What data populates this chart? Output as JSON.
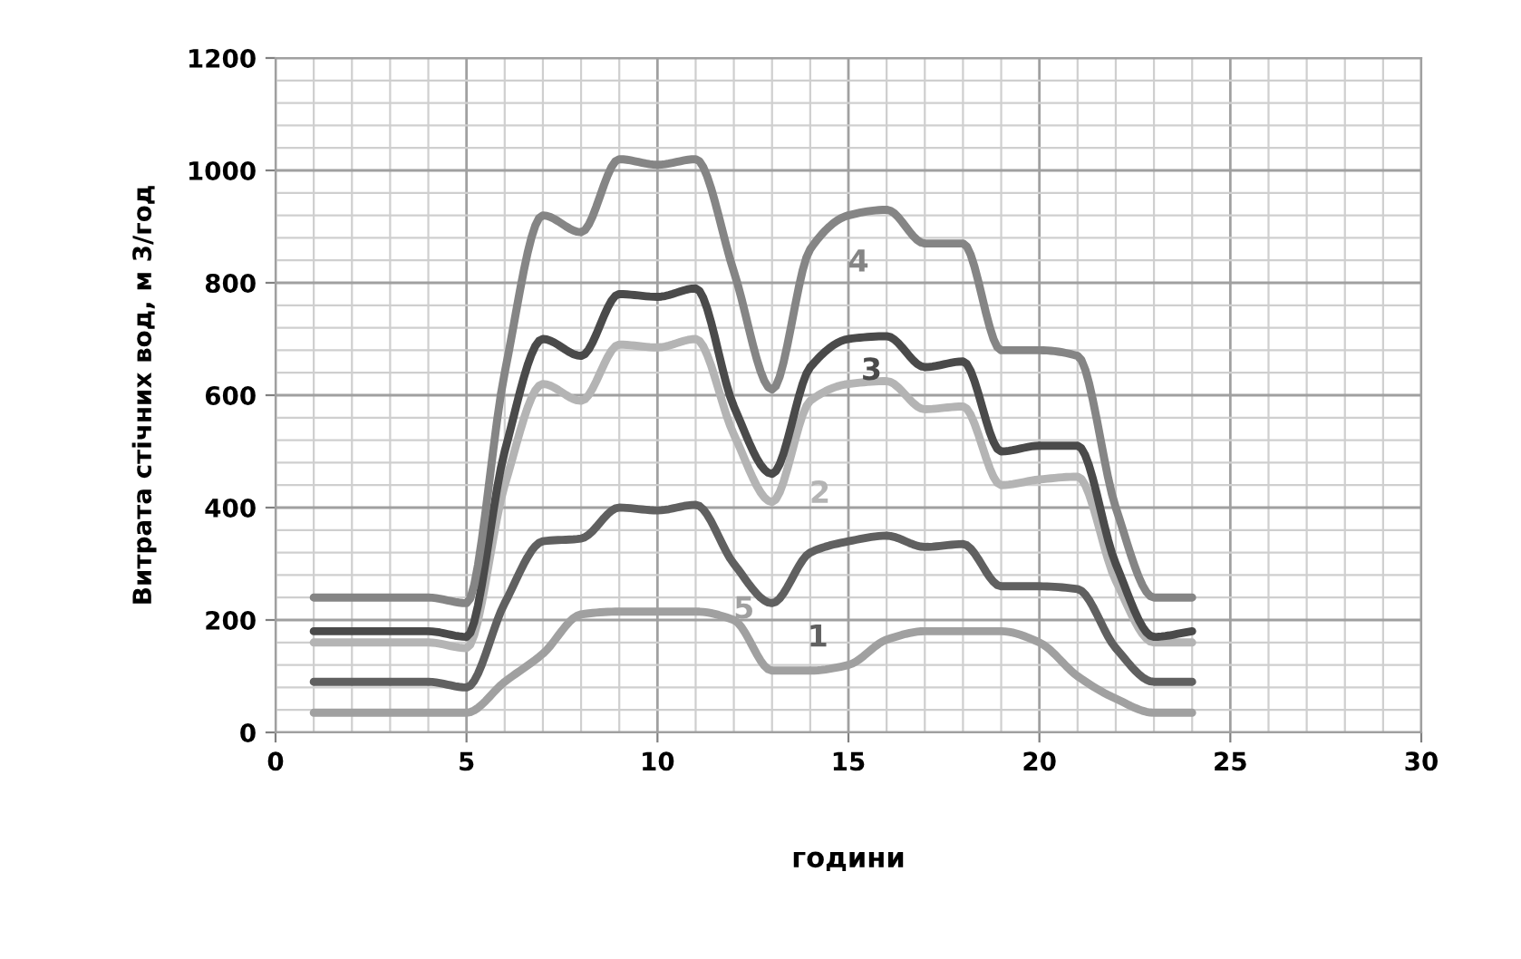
{
  "chart_data": {
    "type": "line",
    "xlabel": "години",
    "ylabel": "Витрата стічних вод, м 3/год",
    "x": [
      1,
      2,
      3,
      4,
      5,
      6,
      7,
      8,
      9,
      10,
      11,
      12,
      13,
      14,
      15,
      16,
      17,
      18,
      19,
      20,
      21,
      22,
      23,
      24
    ],
    "series": [
      {
        "name": "1",
        "color": "#606060",
        "values": [
          90,
          90,
          90,
          90,
          80,
          230,
          340,
          345,
          400,
          395,
          405,
          300,
          230,
          320,
          340,
          350,
          330,
          335,
          260,
          260,
          255,
          150,
          90,
          90
        ]
      },
      {
        "name": "2",
        "color": "#b4b4b4",
        "values": [
          160,
          160,
          160,
          160,
          150,
          440,
          620,
          590,
          690,
          685,
          700,
          530,
          410,
          590,
          620,
          625,
          575,
          580,
          440,
          450,
          455,
          270,
          160,
          160
        ]
      },
      {
        "name": "3",
        "color": "#4a4a4a",
        "values": [
          180,
          180,
          180,
          180,
          170,
          500,
          700,
          670,
          780,
          775,
          790,
          580,
          460,
          650,
          700,
          705,
          650,
          660,
          500,
          510,
          510,
          300,
          170,
          180
        ]
      },
      {
        "name": "4",
        "color": "#858585",
        "values": [
          240,
          240,
          240,
          240,
          230,
          640,
          920,
          890,
          1020,
          1010,
          1020,
          820,
          610,
          860,
          920,
          930,
          870,
          870,
          680,
          680,
          670,
          400,
          240,
          240
        ]
      },
      {
        "name": "5",
        "color": "#a0a0a0",
        "values": [
          35,
          35,
          35,
          35,
          35,
          90,
          140,
          210,
          215,
          215,
          215,
          200,
          110,
          110,
          120,
          165,
          180,
          180,
          180,
          160,
          100,
          60,
          35,
          35
        ]
      }
    ],
    "xlim": [
      0,
      30
    ],
    "xticks": [
      0,
      5,
      10,
      15,
      20,
      25,
      30
    ],
    "ylim": [
      0,
      1200
    ],
    "yticks": [
      0,
      200,
      400,
      600,
      800,
      1000,
      1200
    ],
    "grid": true,
    "marker": "none",
    "line_style": "solid"
  }
}
